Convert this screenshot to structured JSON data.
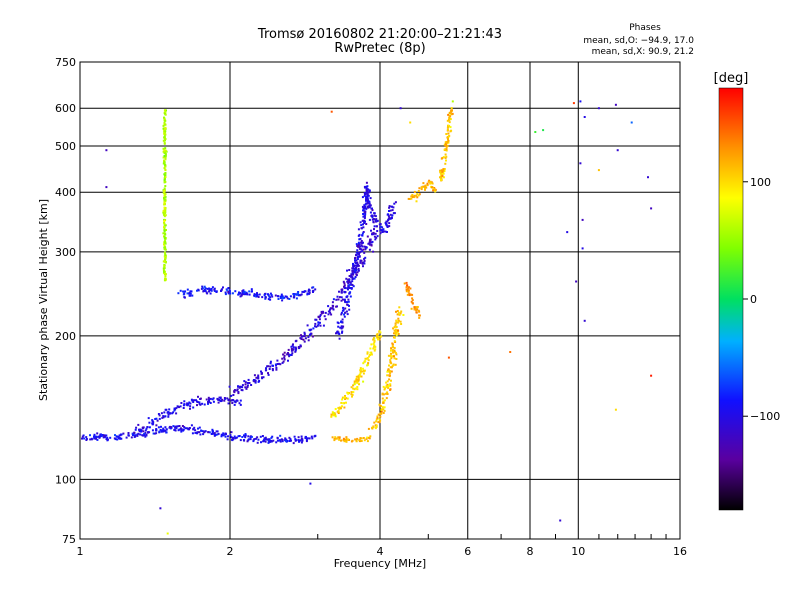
{
  "header": {
    "title": "Tromsø 20160802 21:20:00–21:21:43",
    "subtitle": "RwPretec (8p)"
  },
  "phases_box": {
    "heading": "Phases",
    "line_o": "mean, sd,O: −94.9, 17.0",
    "line_x": "mean, sd,X:  90.9, 21.2"
  },
  "colorbar": {
    "unit_label": "[deg]",
    "tick_labels": [
      "100",
      "0",
      "−100"
    ],
    "tick_values": [
      100,
      0,
      -100
    ],
    "range": [
      -180,
      180
    ]
  },
  "chart_data": {
    "type": "scatter",
    "title": "Tromsø 20160802 21:20:00–21:21:43",
    "subtitle": "RwPretec (8p)",
    "xlabel": "Frequency [MHz]",
    "ylabel": "Stationary phase Virtual Height [km]",
    "x_scale": "log",
    "y_scale": "log",
    "xlim": [
      1,
      16
    ],
    "ylim": [
      75,
      750
    ],
    "x_ticks": [
      1,
      2,
      4,
      6,
      8,
      10,
      16
    ],
    "x_tick_labels": [
      "1",
      "2",
      "4",
      "6",
      "8",
      "10",
      "16"
    ],
    "y_ticks": [
      75,
      100,
      200,
      300,
      400,
      500,
      600,
      750
    ],
    "y_tick_labels": [
      "75",
      "100",
      "200",
      "300",
      "400",
      "500",
      "600",
      "750"
    ],
    "grid": true,
    "color_variable": "phase [deg]",
    "color_range": [
      -180,
      180
    ],
    "traces": [
      {
        "x": [
          1.0,
          1.1,
          1.2,
          1.3,
          1.4,
          1.55,
          1.7,
          1.85,
          2.0,
          2.2,
          2.4,
          2.6,
          2.8,
          2.95
        ],
        "y": [
          122,
          123,
          122,
          124,
          126,
          128,
          127,
          125,
          123,
          122,
          121,
          121,
          121,
          122
        ],
        "phase": -95,
        "spread": 2.5
      },
      {
        "x": [
          1.3,
          1.4,
          1.5,
          1.6,
          1.7,
          1.8,
          1.9,
          2.0,
          2.1
        ],
        "y": [
          126,
          132,
          138,
          142,
          145,
          146,
          147,
          146,
          145
        ],
        "phase": -100,
        "spread": 3
      },
      {
        "x": [
          2.0,
          2.2,
          2.4,
          2.6,
          2.8,
          3.0,
          3.2,
          3.4,
          3.6,
          3.8,
          4.0
        ],
        "y": [
          150,
          160,
          170,
          182,
          196,
          212,
          230,
          252,
          278,
          310,
          345
        ],
        "phase": -110,
        "spread": 4
      },
      {
        "x": [
          3.3,
          3.45,
          3.6,
          3.7,
          3.8
        ],
        "y": [
          200,
          240,
          290,
          340,
          410
        ],
        "phase": -100,
        "spread": 2.5
      },
      {
        "x": [
          1.6,
          1.8,
          2.0,
          2.2,
          2.4,
          2.6,
          2.8,
          2.95
        ],
        "y": [
          245,
          250,
          248,
          245,
          242,
          241,
          244,
          250
        ],
        "phase": -90,
        "spread": 2.5
      },
      {
        "x": [
          3.7,
          3.85,
          4.0,
          4.1,
          4.15,
          4.25
        ],
        "y": [
          420,
          360,
          335,
          330,
          345,
          380
        ],
        "phase": -100,
        "spread": 2.5
      },
      {
        "x": [
          3.85,
          4.0,
          4.1,
          4.2,
          4.3,
          4.4
        ],
        "y": [
          128,
          135,
          150,
          170,
          200,
          230
        ],
        "phase": 110,
        "spread": 3
      },
      {
        "x": [
          3.2,
          3.4,
          3.6,
          3.8,
          4.0
        ],
        "y": [
          135,
          145,
          160,
          180,
          205
        ],
        "phase": 100,
        "spread": 3
      },
      {
        "x": [
          3.2,
          3.4,
          3.6,
          3.8
        ],
        "y": [
          122,
          121,
          121,
          122
        ],
        "phase": 115,
        "spread": 2
      },
      {
        "x": [
          4.6,
          4.8,
          5.0,
          5.2
        ],
        "y": [
          385,
          400,
          420,
          400
        ],
        "phase": 115,
        "spread": 2.5
      },
      {
        "x": [
          5.3,
          5.4,
          5.5,
          5.55
        ],
        "y": [
          420,
          480,
          540,
          600
        ],
        "phase": 110,
        "spread": 2
      },
      {
        "x": [
          1.48,
          1.48,
          1.48,
          1.48
        ],
        "y": [
          260,
          320,
          420,
          600
        ],
        "phase": 60,
        "spread": 1
      },
      {
        "x": [
          4.5,
          4.6,
          4.8
        ],
        "y": [
          260,
          240,
          220
        ],
        "phase": 130,
        "spread": 2
      }
    ],
    "isolated_points": [
      {
        "x": 1.13,
        "y": 490,
        "phase": -120
      },
      {
        "x": 1.13,
        "y": 410,
        "phase": -120
      },
      {
        "x": 1.45,
        "y": 87,
        "phase": -110
      },
      {
        "x": 1.5,
        "y": 77,
        "phase": 80
      },
      {
        "x": 2.9,
        "y": 98,
        "phase": -100
      },
      {
        "x": 5.5,
        "y": 180,
        "phase": 150
      },
      {
        "x": 7.3,
        "y": 185,
        "phase": 140
      },
      {
        "x": 8.2,
        "y": 535,
        "phase": 20
      },
      {
        "x": 8.5,
        "y": 540,
        "phase": 10
      },
      {
        "x": 9.2,
        "y": 82,
        "phase": -110
      },
      {
        "x": 9.5,
        "y": 330,
        "phase": -100
      },
      {
        "x": 9.9,
        "y": 260,
        "phase": -120
      },
      {
        "x": 10.1,
        "y": 620,
        "phase": -90
      },
      {
        "x": 10.1,
        "y": 460,
        "phase": -110
      },
      {
        "x": 10.2,
        "y": 350,
        "phase": -120
      },
      {
        "x": 10.3,
        "y": 575,
        "phase": -100
      },
      {
        "x": 10.3,
        "y": 215,
        "phase": -110
      },
      {
        "x": 10.2,
        "y": 305,
        "phase": -100
      },
      {
        "x": 11.0,
        "y": 600,
        "phase": -110
      },
      {
        "x": 11.0,
        "y": 445,
        "phase": 110
      },
      {
        "x": 11.9,
        "y": 610,
        "phase": -120
      },
      {
        "x": 12.0,
        "y": 490,
        "phase": -110
      },
      {
        "x": 11.9,
        "y": 140,
        "phase": 100
      },
      {
        "x": 12.8,
        "y": 560,
        "phase": -60
      },
      {
        "x": 13.8,
        "y": 430,
        "phase": -110
      },
      {
        "x": 14.0,
        "y": 370,
        "phase": -120
      },
      {
        "x": 14.0,
        "y": 165,
        "phase": 170
      },
      {
        "x": 9.8,
        "y": 615,
        "phase": 160
      },
      {
        "x": 4.6,
        "y": 560,
        "phase": 100
      },
      {
        "x": 4.4,
        "y": 600,
        "phase": -110
      },
      {
        "x": 5.6,
        "y": 620,
        "phase": 60
      },
      {
        "x": 3.2,
        "y": 590,
        "phase": 150
      }
    ]
  }
}
